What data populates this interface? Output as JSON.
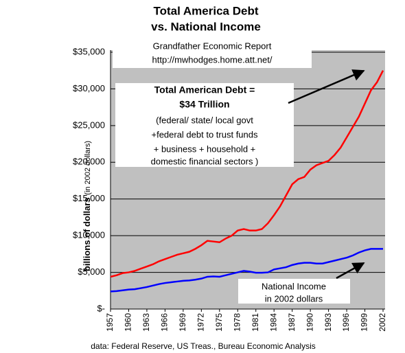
{
  "chart_data": {
    "type": "line",
    "title": [
      "Total America Debt",
      "vs. National Income"
    ],
    "ylabel": "billions of dollars",
    "ylabel_note": "(in 2002 dollars)",
    "source": "data: Federal Reserve, US Treas., Bureau Economic Analysis",
    "annotations": {
      "report": [
        "Grandfather Economic Report",
        "http://mwhodges.home.att.net/"
      ],
      "debt": [
        "Total American Debt =",
        "$34 Trillion",
        "(federal/ state/ local govt",
        "+federal debt to trust funds",
        "+ business + household +",
        "domestic financial sectors )"
      ],
      "income": [
        "National Income",
        "in 2002 dollars"
      ]
    },
    "x": [
      1957,
      1958,
      1959,
      1960,
      1961,
      1962,
      1963,
      1964,
      1965,
      1966,
      1967,
      1968,
      1969,
      1970,
      1971,
      1972,
      1973,
      1974,
      1975,
      1976,
      1977,
      1978,
      1979,
      1980,
      1981,
      1982,
      1983,
      1984,
      1985,
      1986,
      1987,
      1988,
      1989,
      1990,
      1991,
      1992,
      1993,
      1994,
      1995,
      1996,
      1997,
      1998,
      1999,
      2000,
      2001,
      2002
    ],
    "xlim": [
      1957,
      2002
    ],
    "xticks": [
      1957,
      1960,
      1963,
      1966,
      1969,
      1972,
      1975,
      1978,
      1981,
      1984,
      1987,
      1990,
      1993,
      1996,
      1999,
      2002
    ],
    "ylim": [
      0,
      35000
    ],
    "yticks": [
      {
        "value": 0,
        "label": "$-"
      },
      {
        "value": 5000,
        "label": "$5,000"
      },
      {
        "value": 10000,
        "label": "$10,000"
      },
      {
        "value": 15000,
        "label": "$15,000"
      },
      {
        "value": 20000,
        "label": "$20,000"
      },
      {
        "value": 25000,
        "label": "$25,000"
      },
      {
        "value": 30000,
        "label": "$30,000"
      },
      {
        "value": 35000,
        "label": "$35,000"
      }
    ],
    "grid": true,
    "background": "#c0c0c0",
    "series": [
      {
        "name": "Total American Debt",
        "color": "#ff0000",
        "values": [
          4400,
          4600,
          4900,
          5000,
          5200,
          5500,
          5800,
          6100,
          6500,
          6800,
          7100,
          7400,
          7600,
          7800,
          8200,
          8700,
          9300,
          9200,
          9100,
          9600,
          10000,
          10700,
          10900,
          10700,
          10700,
          10900,
          11700,
          12800,
          14000,
          15500,
          17000,
          17700,
          18000,
          19000,
          19600,
          19900,
          20200,
          21000,
          22000,
          23400,
          24800,
          26200,
          28000,
          29800,
          30900,
          32500
        ]
      },
      {
        "name": "National Income",
        "color": "#0000ff",
        "values": [
          2400,
          2450,
          2550,
          2650,
          2700,
          2850,
          3000,
          3200,
          3400,
          3550,
          3650,
          3750,
          3850,
          3900,
          4000,
          4150,
          4400,
          4450,
          4400,
          4600,
          4800,
          5000,
          5200,
          5100,
          4950,
          4950,
          5000,
          5400,
          5550,
          5700,
          6000,
          6200,
          6300,
          6300,
          6200,
          6200,
          6400,
          6600,
          6800,
          7000,
          7300,
          7700,
          8000,
          8200,
          8200,
          8200
        ]
      }
    ]
  }
}
